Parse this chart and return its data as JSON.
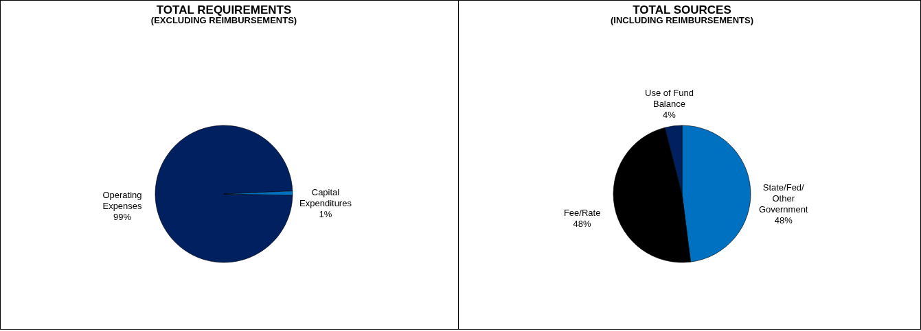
{
  "chart_data": [
    {
      "type": "pie",
      "title": "TOTAL REQUIREMENTS",
      "subtitle": "(EXCLUDING REIMBURSEMENTS)",
      "categories": [
        "Operating Expenses",
        "Capital Expenditures"
      ],
      "values": [
        99,
        1
      ],
      "value_labels": [
        "99%",
        "1%"
      ],
      "colors": [
        "#002060",
        "#0070c0"
      ]
    },
    {
      "type": "pie",
      "title": "TOTAL SOURCES",
      "subtitle": "(INCLUDING REIMBURSEMENTS)",
      "categories": [
        "State/Fed/Other Government",
        "Fee/Rate",
        "Use of Fund Balance"
      ],
      "values": [
        48,
        48,
        4
      ],
      "value_labels": [
        "48%",
        "48%",
        "4%"
      ],
      "colors": [
        "#0070c0",
        "#000000",
        "#002060"
      ]
    }
  ]
}
